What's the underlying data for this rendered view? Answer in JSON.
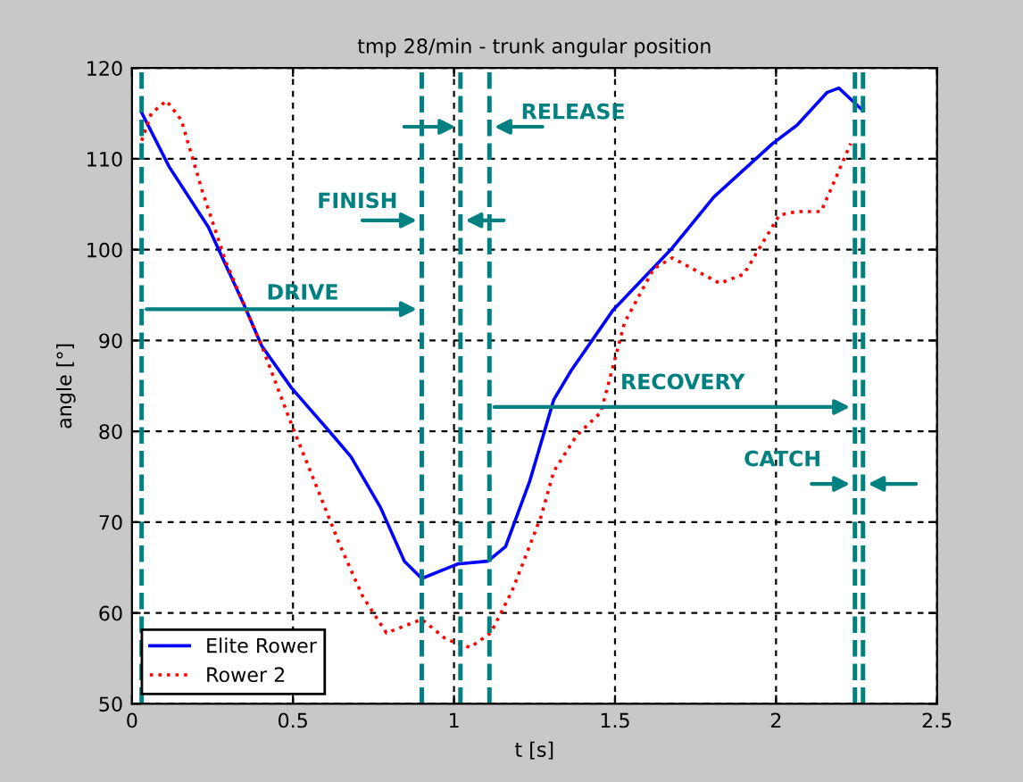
{
  "chart_data": {
    "type": "line",
    "title": "tmp 28/min - trunk angular position",
    "xlabel": "t [s]",
    "ylabel": "angle [°]",
    "xlim": [
      0,
      2.5
    ],
    "xticks": [
      0,
      0.5,
      1,
      1.5,
      2,
      2.5
    ],
    "ylim": [
      50,
      120
    ],
    "yticks": [
      50,
      60,
      70,
      80,
      90,
      100,
      110,
      120
    ],
    "grid": true,
    "legend": "bottom left",
    "series": [
      {
        "name": "Elite Rower",
        "color": "#0000ff",
        "line_style": "solid",
        "x": [
          0.03,
          0.116,
          0.237,
          0.347,
          0.403,
          0.495,
          0.625,
          0.68,
          0.772,
          0.846,
          0.9,
          1.012,
          1.105,
          1.16,
          1.235,
          1.31,
          1.364,
          1.493,
          1.678,
          1.807,
          1.99,
          2.065,
          2.158,
          2.195,
          2.27
        ],
        "values": [
          115.1,
          109.1,
          102.5,
          94.0,
          89.4,
          84.8,
          79.5,
          77.2,
          71.6,
          65.7,
          63.8,
          65.4,
          65.7,
          67.3,
          74.5,
          83.5,
          86.7,
          93.3,
          100.2,
          105.8,
          111.7,
          113.7,
          117.3,
          117.8,
          115.3
        ]
      },
      {
        "name": "Rower 2",
        "color": "#ff0000",
        "line_style": "dotted",
        "x": [
          0.03,
          0.06,
          0.107,
          0.153,
          0.218,
          0.292,
          0.403,
          0.495,
          0.57,
          0.643,
          0.717,
          0.79,
          0.9,
          0.976,
          1.05,
          1.114,
          1.18,
          1.27,
          1.31,
          1.38,
          1.456,
          1.53,
          1.62,
          1.678,
          1.825,
          1.9,
          2.01,
          2.065,
          2.14,
          2.232
        ],
        "values": [
          112.0,
          115.0,
          116.4,
          114.3,
          106.5,
          98.6,
          89.4,
          80.8,
          74.2,
          67.7,
          61.8,
          57.8,
          59.3,
          57.1,
          56.2,
          57.8,
          62.4,
          70.6,
          75.6,
          79.5,
          82.1,
          92.0,
          97.9,
          99.1,
          96.3,
          97.3,
          103.8,
          104.2,
          104.2,
          111.7
        ]
      }
    ],
    "ref_lines": [
      {
        "axis": "x",
        "value": 0.03,
        "color": "#008080",
        "line_style": "dashed"
      },
      {
        "axis": "x",
        "value": 0.9,
        "color": "#008080",
        "line_style": "dashed"
      },
      {
        "axis": "x",
        "value": 1.02,
        "color": "#008080",
        "line_style": "dashed"
      },
      {
        "axis": "x",
        "value": 1.11,
        "color": "#008080",
        "line_style": "dashed"
      },
      {
        "axis": "x",
        "value": 2.245,
        "color": "#008080",
        "line_style": "dashed"
      },
      {
        "axis": "x",
        "value": 2.27,
        "color": "#008080",
        "line_style": "dashed"
      }
    ],
    "annotations": [
      "DRIVE",
      "FINISH",
      "RELEASE",
      "RECOVERY",
      "CATCH"
    ]
  }
}
